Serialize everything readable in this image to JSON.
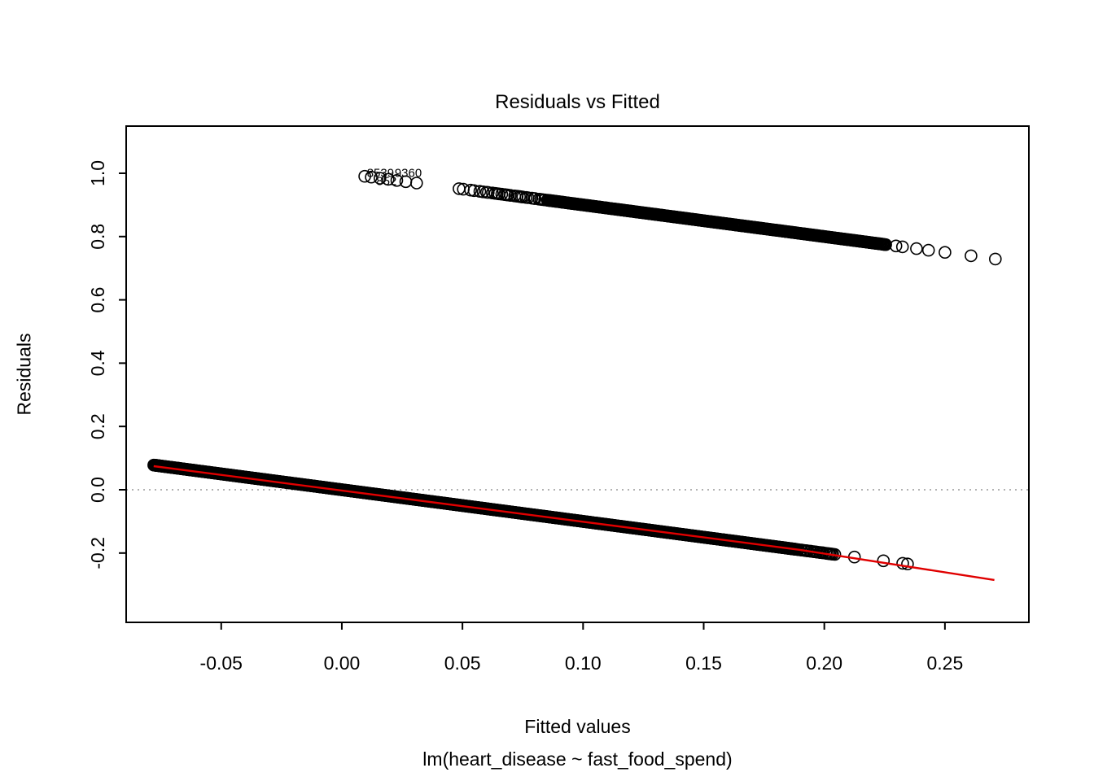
{
  "chart_data": {
    "type": "scatter",
    "title": "Residuals vs Fitted",
    "xlabel": "Fitted values",
    "sublabel": "lm(heart_disease ~ fast_food_spend)",
    "ylabel": "Residuals",
    "xlim": [
      -0.0894,
      0.2848
    ],
    "ylim": [
      -0.419,
      1.149
    ],
    "x_ticks": [
      -0.05,
      0.0,
      0.05,
      0.1,
      0.15,
      0.2,
      0.25
    ],
    "x_tick_labels": [
      "-0.05",
      "0.00",
      "0.05",
      "0.10",
      "0.15",
      "0.20",
      "0.25"
    ],
    "y_ticks": [
      -0.2,
      0.0,
      0.2,
      0.4,
      0.6,
      0.8,
      1.0
    ],
    "y_tick_labels": [
      "-0.2",
      "0.0",
      "0.2",
      "0.4",
      "0.6",
      "0.8",
      "1.0"
    ],
    "grid": false,
    "legend": "none",
    "colors": {
      "points": "#000000",
      "box": "#000000",
      "smoother": "#e00000",
      "zero_line": "#999999",
      "background": "#ffffff"
    },
    "zero_reference_line": {
      "y": 0.0,
      "style": "dotted"
    },
    "bands": [
      {
        "name": "upper-band-residual-equals-1-minus-fitted",
        "slope": -1,
        "intercept": 1,
        "segments": [
          {
            "x0": 0.048,
            "x1": 0.0585,
            "n": 5
          },
          {
            "x0": 0.0585,
            "x1": 0.085,
            "n": 26
          },
          {
            "x0": 0.085,
            "x1": 0.2255,
            "n": 430
          }
        ],
        "singles": [
          0.0095,
          0.0122,
          0.0158,
          0.0192,
          0.0228,
          0.0265,
          0.031,
          0.2297,
          0.2324,
          0.2382,
          0.2432,
          0.25,
          0.2608,
          0.2709
        ]
      },
      {
        "name": "lower-band-residual-equals-minus-fitted",
        "slope": -1,
        "intercept": 0,
        "segments": [
          {
            "x0": -0.078,
            "x1": 0.188,
            "n": 1250
          },
          {
            "x0": 0.188,
            "x1": 0.2045,
            "n": 26
          }
        ],
        "singles": [
          0.2125,
          0.2245,
          0.2325,
          0.2345
        ]
      }
    ],
    "smoother_points": [
      [
        -0.078,
        0.0745
      ],
      [
        0.19,
        -0.19
      ],
      [
        0.2705,
        -0.285
      ]
    ],
    "point_labels": [
      {
        "label": "8539",
        "x": 0.016,
        "y": 1.001
      },
      {
        "label": "9360",
        "x": 0.0275,
        "y": 1.001
      },
      {
        "label": "852",
        "x": 0.0185,
        "y": 0.975
      }
    ]
  }
}
